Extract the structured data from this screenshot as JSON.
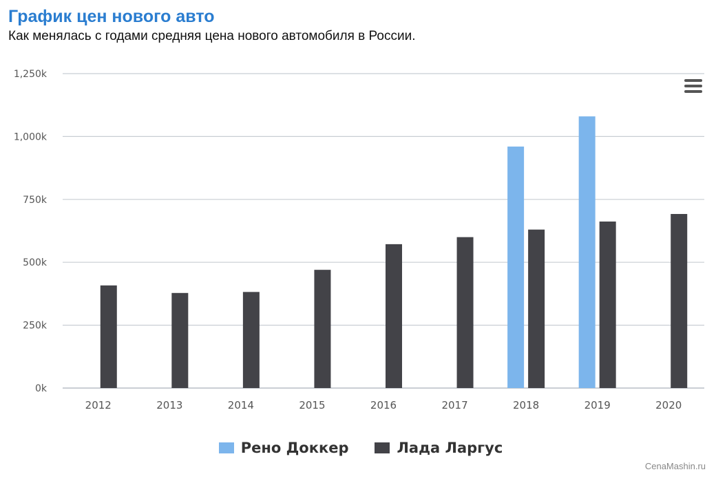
{
  "chart_data": {
    "type": "bar",
    "title": "График цен нового авто",
    "subtitle": "Как менялась с годами средняя цена нового автомобиля в России.",
    "categories": [
      "2012",
      "2013",
      "2014",
      "2015",
      "2016",
      "2017",
      "2018",
      "2019",
      "2020"
    ],
    "series": [
      {
        "name": "Рено Доккер",
        "color": "#7cb5ec",
        "values": [
          null,
          null,
          null,
          null,
          null,
          null,
          960000,
          1080000,
          null
        ]
      },
      {
        "name": "Лада Ларгус",
        "color": "#434348",
        "values": [
          408000,
          378000,
          382000,
          470000,
          572000,
          600000,
          630000,
          662000,
          692000
        ]
      }
    ],
    "ylim": [
      0,
      1250000
    ],
    "yticks": [
      0,
      250000,
      500000,
      750000,
      1000000,
      1250000
    ],
    "ytick_labels": [
      "0k",
      "250k",
      "500k",
      "750k",
      "1,000k",
      "1,250k"
    ],
    "xlabel": "",
    "ylabel": "",
    "grid": true,
    "legend_position": "bottom"
  },
  "menu": {
    "icon": "hamburger-menu-icon"
  },
  "credit": "CenaMashin.ru"
}
